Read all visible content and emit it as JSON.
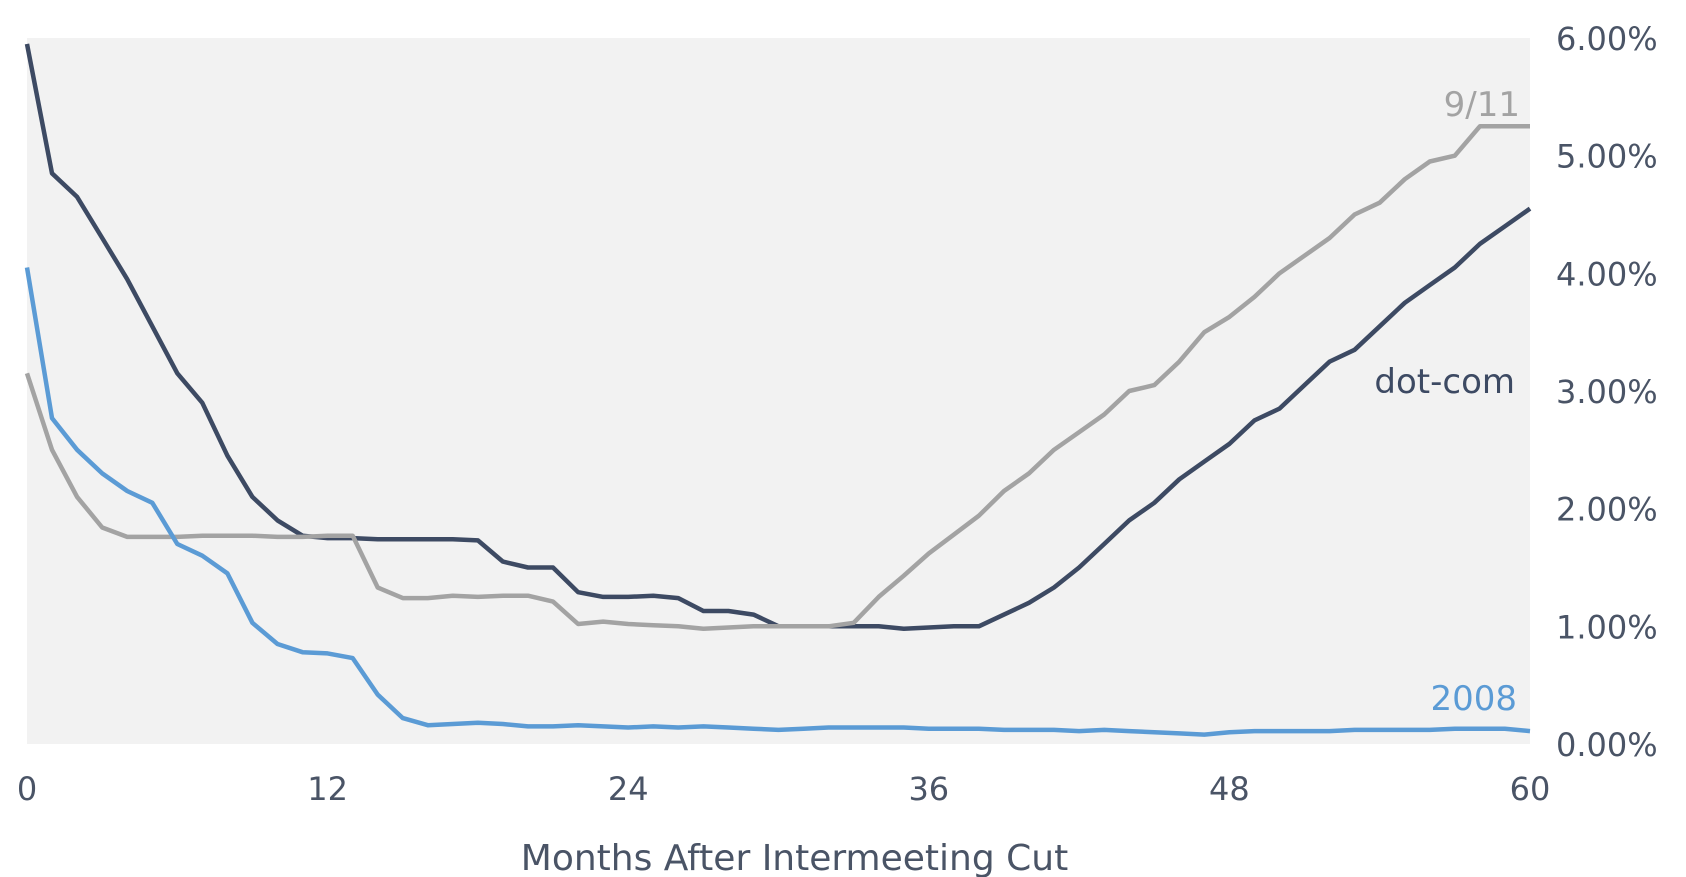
{
  "chart_data": {
    "type": "line",
    "title": "",
    "xlabel": "Months After Intermeeting Cut",
    "ylabel": "",
    "xlim": [
      0,
      60
    ],
    "ylim": [
      0,
      6
    ],
    "x_ticks": [
      0,
      12,
      24,
      36,
      48,
      60
    ],
    "x_tick_labels": [
      "0",
      "12",
      "24",
      "36",
      "48",
      "60"
    ],
    "y_ticks": [
      0,
      1,
      2,
      3,
      4,
      5,
      6
    ],
    "y_tick_labels": [
      "0.00%",
      "1.00%",
      "2.00%",
      "3.00%",
      "4.00%",
      "5.00%",
      "6.00%"
    ],
    "y_axis_side": "right",
    "grid": false,
    "plot_background": "#f2f2f2",
    "legend": "inline labels",
    "series": [
      {
        "name": "dot-com",
        "color": "#3d4a63",
        "label_color": "#3d4a63",
        "points": [
          [
            0,
            5.95
          ],
          [
            1,
            4.85
          ],
          [
            2,
            4.65
          ],
          [
            3,
            4.3
          ],
          [
            4,
            3.95
          ],
          [
            5,
            3.55
          ],
          [
            6,
            3.15
          ],
          [
            7,
            2.9
          ],
          [
            8,
            2.45
          ],
          [
            9,
            2.1
          ],
          [
            10,
            1.9
          ],
          [
            11,
            1.77
          ],
          [
            12,
            1.75
          ],
          [
            13,
            1.75
          ],
          [
            14,
            1.74
          ],
          [
            15,
            1.74
          ],
          [
            16,
            1.74
          ],
          [
            17,
            1.74
          ],
          [
            18,
            1.73
          ],
          [
            19,
            1.55
          ],
          [
            20,
            1.5
          ],
          [
            21,
            1.5
          ],
          [
            22,
            1.29
          ],
          [
            23,
            1.25
          ],
          [
            24,
            1.25
          ],
          [
            25,
            1.26
          ],
          [
            26,
            1.24
          ],
          [
            27,
            1.13
          ],
          [
            28,
            1.13
          ],
          [
            29,
            1.1
          ],
          [
            30,
            1.0
          ],
          [
            31,
            1.0
          ],
          [
            32,
            1.0
          ],
          [
            33,
            1.0
          ],
          [
            34,
            1.0
          ],
          [
            35,
            0.98
          ],
          [
            36,
            0.99
          ],
          [
            37,
            1.0
          ],
          [
            38,
            1.0
          ],
          [
            39,
            1.1
          ],
          [
            40,
            1.2
          ],
          [
            41,
            1.33
          ],
          [
            42,
            1.5
          ],
          [
            43,
            1.7
          ],
          [
            44,
            1.9
          ],
          [
            45,
            2.05
          ],
          [
            46,
            2.25
          ],
          [
            47,
            2.4
          ],
          [
            48,
            2.55
          ],
          [
            49,
            2.75
          ],
          [
            50,
            2.85
          ],
          [
            51,
            3.05
          ],
          [
            52,
            3.25
          ],
          [
            53,
            3.35
          ],
          [
            54,
            3.55
          ],
          [
            55,
            3.75
          ],
          [
            56,
            3.9
          ],
          [
            57,
            4.05
          ],
          [
            58,
            4.25
          ],
          [
            59,
            4.4
          ],
          [
            60,
            4.55
          ]
        ]
      },
      {
        "name": "9/11",
        "color": "#a3a3a3",
        "label_color": "#a3a3a3",
        "points": [
          [
            0,
            3.15
          ],
          [
            1,
            2.5
          ],
          [
            2,
            2.1
          ],
          [
            3,
            1.84
          ],
          [
            4,
            1.76
          ],
          [
            5,
            1.76
          ],
          [
            6,
            1.76
          ],
          [
            7,
            1.77
          ],
          [
            8,
            1.77
          ],
          [
            9,
            1.77
          ],
          [
            10,
            1.76
          ],
          [
            11,
            1.76
          ],
          [
            12,
            1.77
          ],
          [
            13,
            1.77
          ],
          [
            14,
            1.33
          ],
          [
            15,
            1.24
          ],
          [
            16,
            1.24
          ],
          [
            17,
            1.26
          ],
          [
            18,
            1.25
          ],
          [
            19,
            1.26
          ],
          [
            20,
            1.26
          ],
          [
            21,
            1.21
          ],
          [
            22,
            1.02
          ],
          [
            23,
            1.04
          ],
          [
            24,
            1.02
          ],
          [
            25,
            1.01
          ],
          [
            26,
            1.0
          ],
          [
            27,
            0.98
          ],
          [
            28,
            0.99
          ],
          [
            29,
            1.0
          ],
          [
            30,
            1.0
          ],
          [
            31,
            1.0
          ],
          [
            32,
            1.0
          ],
          [
            33,
            1.03
          ],
          [
            34,
            1.25
          ],
          [
            35,
            1.43
          ],
          [
            36,
            1.62
          ],
          [
            37,
            1.78
          ],
          [
            38,
            1.94
          ],
          [
            39,
            2.15
          ],
          [
            40,
            2.3
          ],
          [
            41,
            2.5
          ],
          [
            42,
            2.65
          ],
          [
            43,
            2.8
          ],
          [
            44,
            3.0
          ],
          [
            45,
            3.05
          ],
          [
            46,
            3.25
          ],
          [
            47,
            3.5
          ],
          [
            48,
            3.63
          ],
          [
            49,
            3.8
          ],
          [
            50,
            4.0
          ],
          [
            51,
            4.15
          ],
          [
            52,
            4.3
          ],
          [
            53,
            4.5
          ],
          [
            54,
            4.6
          ],
          [
            55,
            4.8
          ],
          [
            56,
            4.95
          ],
          [
            57,
            5.0
          ],
          [
            58,
            5.25
          ],
          [
            59,
            5.25
          ],
          [
            60,
            5.25
          ]
        ]
      },
      {
        "name": "2008",
        "color": "#5b9bd5",
        "label_color": "#5b9bd5",
        "points": [
          [
            0,
            4.05
          ],
          [
            1,
            2.77
          ],
          [
            2,
            2.5
          ],
          [
            3,
            2.3
          ],
          [
            4,
            2.15
          ],
          [
            5,
            2.05
          ],
          [
            6,
            1.7
          ],
          [
            7,
            1.6
          ],
          [
            8,
            1.45
          ],
          [
            9,
            1.03
          ],
          [
            10,
            0.85
          ],
          [
            11,
            0.78
          ],
          [
            12,
            0.77
          ],
          [
            13,
            0.73
          ],
          [
            14,
            0.42
          ],
          [
            15,
            0.22
          ],
          [
            16,
            0.16
          ],
          [
            17,
            0.17
          ],
          [
            18,
            0.18
          ],
          [
            19,
            0.17
          ],
          [
            20,
            0.15
          ],
          [
            21,
            0.15
          ],
          [
            22,
            0.16
          ],
          [
            23,
            0.15
          ],
          [
            24,
            0.14
          ],
          [
            25,
            0.15
          ],
          [
            26,
            0.14
          ],
          [
            27,
            0.15
          ],
          [
            28,
            0.14
          ],
          [
            29,
            0.13
          ],
          [
            30,
            0.12
          ],
          [
            31,
            0.13
          ],
          [
            32,
            0.14
          ],
          [
            33,
            0.14
          ],
          [
            34,
            0.14
          ],
          [
            35,
            0.14
          ],
          [
            36,
            0.13
          ],
          [
            37,
            0.13
          ],
          [
            38,
            0.13
          ],
          [
            39,
            0.12
          ],
          [
            40,
            0.12
          ],
          [
            41,
            0.12
          ],
          [
            42,
            0.11
          ],
          [
            43,
            0.12
          ],
          [
            44,
            0.11
          ],
          [
            45,
            0.1
          ],
          [
            46,
            0.09
          ],
          [
            47,
            0.08
          ],
          [
            48,
            0.1
          ],
          [
            49,
            0.11
          ],
          [
            50,
            0.11
          ],
          [
            51,
            0.11
          ],
          [
            52,
            0.11
          ],
          [
            53,
            0.12
          ],
          [
            54,
            0.12
          ],
          [
            55,
            0.12
          ],
          [
            56,
            0.12
          ],
          [
            57,
            0.13
          ],
          [
            58,
            0.13
          ],
          [
            59,
            0.13
          ],
          [
            60,
            0.11
          ]
        ]
      }
    ]
  }
}
